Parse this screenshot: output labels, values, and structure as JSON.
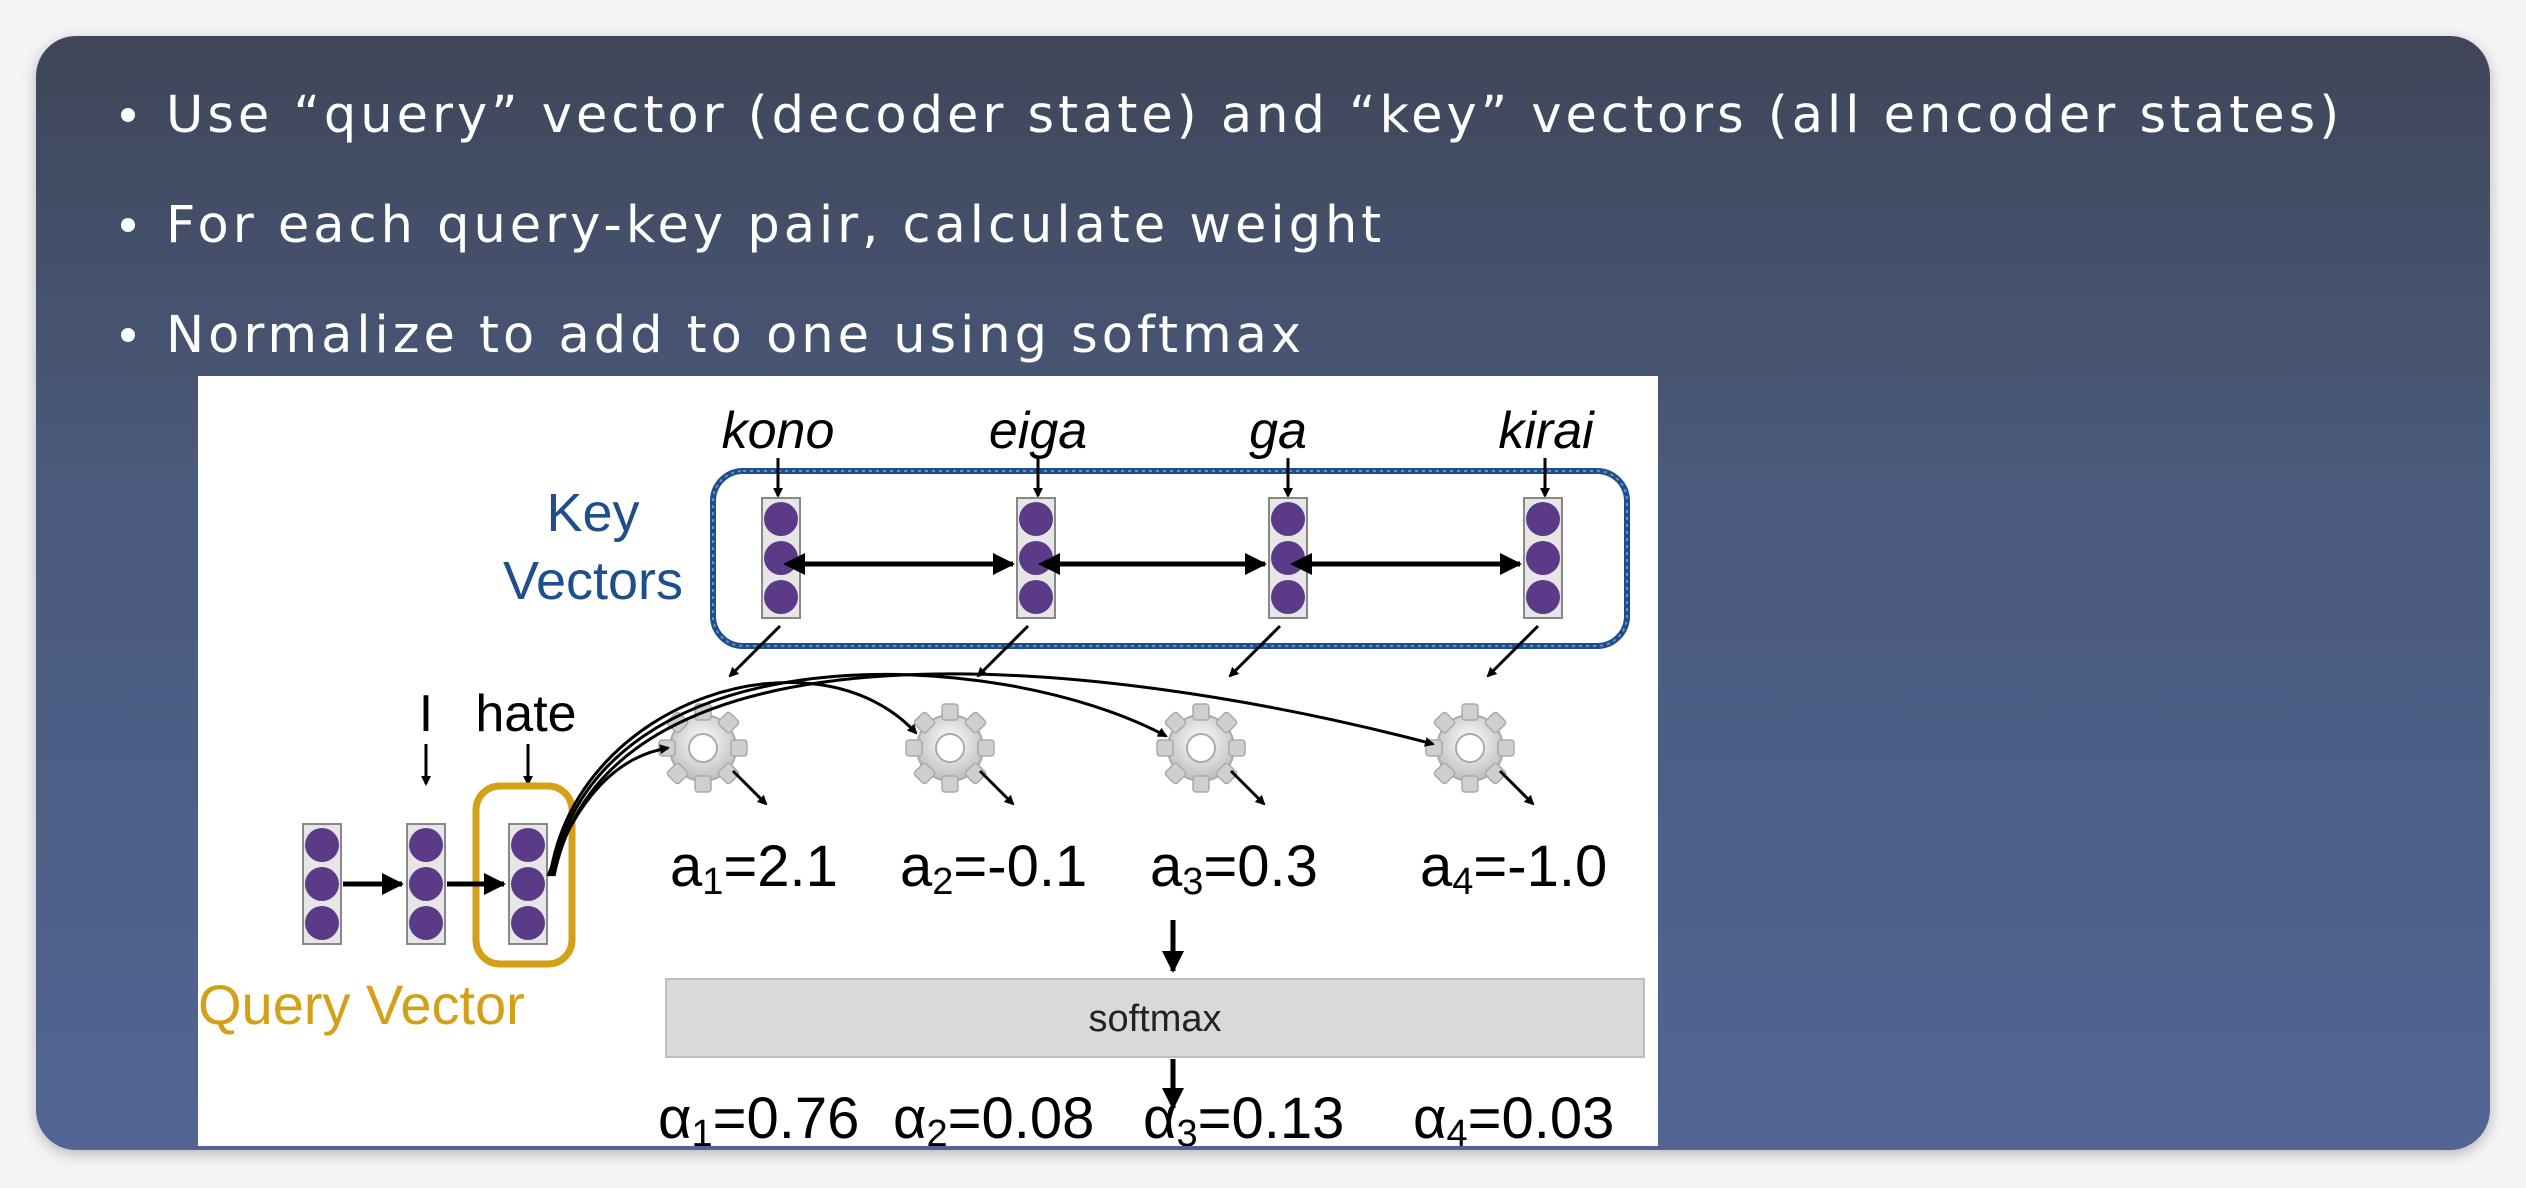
{
  "bullets": [
    "Use “query” vector (decoder state) and “key” vectors (all encoder states)",
    "For each query-key pair, calculate weight",
    "Normalize to add to one using softmax"
  ],
  "diagram": {
    "key_words": [
      "kono",
      "eiga",
      "ga",
      "kirai"
    ],
    "key_vectors_label_line1": "Key",
    "key_vectors_label_line2": "Vectors",
    "query_words": [
      "I",
      "hate"
    ],
    "query_vector_label": "Query Vector",
    "scores": [
      {
        "sym": "a",
        "sub": "1",
        "val": "=2.1"
      },
      {
        "sym": "a",
        "sub": "2",
        "val": "=-0.1"
      },
      {
        "sym": "a",
        "sub": "3",
        "val": "=0.3"
      },
      {
        "sym": "a",
        "sub": "4",
        "val": "=-1.0"
      }
    ],
    "softmax_label": "softmax",
    "weights": [
      {
        "sym": "α",
        "sub": "1",
        "val": "=0.76"
      },
      {
        "sym": "α",
        "sub": "2",
        "val": "=0.08"
      },
      {
        "sym": "α",
        "sub": "3",
        "val": "=0.13"
      },
      {
        "sym": "α",
        "sub": "4",
        "val": "=0.03"
      }
    ],
    "colors": {
      "key_blue": "#1f4e8c",
      "query_gold": "#d4a017",
      "vector_purple": "#5b3a87",
      "softmax_gray": "#d9d9d9"
    }
  }
}
